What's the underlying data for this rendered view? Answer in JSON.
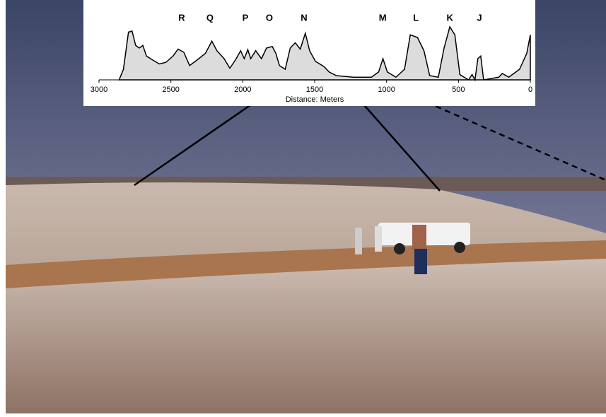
{
  "chart_data": {
    "type": "area",
    "xlabel": "Distance: Meters",
    "x": [
      2860,
      2830,
      2795,
      2770,
      2745,
      2720,
      2695,
      2670,
      2630,
      2580,
      2535,
      2485,
      2450,
      2410,
      2370,
      2320,
      2260,
      2215,
      2180,
      2130,
      2090,
      2050,
      2015,
      1990,
      1965,
      1945,
      1910,
      1870,
      1835,
      1795,
      1770,
      1745,
      1705,
      1670,
      1635,
      1600,
      1565,
      1535,
      1495,
      1465,
      1435,
      1400,
      1350,
      1230,
      1105,
      1055,
      1025,
      995,
      935,
      875,
      835,
      785,
      740,
      700,
      640,
      600,
      560,
      525,
      490,
      430,
      405,
      385,
      365,
      345,
      325,
      220,
      195,
      150,
      75,
      25,
      0
    ],
    "values": [
      0,
      20,
      90,
      92,
      65,
      60,
      65,
      45,
      38,
      30,
      33,
      45,
      58,
      52,
      27,
      37,
      50,
      73,
      55,
      40,
      22,
      38,
      55,
      40,
      57,
      40,
      55,
      40,
      60,
      63,
      50,
      27,
      20,
      60,
      70,
      58,
      88,
      55,
      35,
      30,
      25,
      15,
      8,
      5,
      5,
      15,
      40,
      15,
      5,
      20,
      85,
      80,
      55,
      8,
      5,
      60,
      100,
      85,
      10,
      0,
      10,
      0,
      40,
      45,
      0,
      5,
      12,
      5,
      20,
      50,
      85
    ],
    "color": "#dcdcdc",
    "xlim": [
      3000,
      0
    ],
    "xticks": [
      3000,
      2500,
      2000,
      1500,
      1000,
      500,
      0
    ],
    "ylim": [
      0,
      100
    ],
    "annotations": [
      {
        "text": "R",
        "x": 2425
      },
      {
        "text": "Q",
        "x": 2228
      },
      {
        "text": "P",
        "x": 1982
      },
      {
        "text": "O",
        "x": 1815
      },
      {
        "text": "N",
        "x": 1574
      },
      {
        "text": "M",
        "x": 1027
      },
      {
        "text": "L",
        "x": 796
      },
      {
        "text": "K",
        "x": 560
      },
      {
        "text": "J",
        "x": 354
      }
    ]
  }
}
